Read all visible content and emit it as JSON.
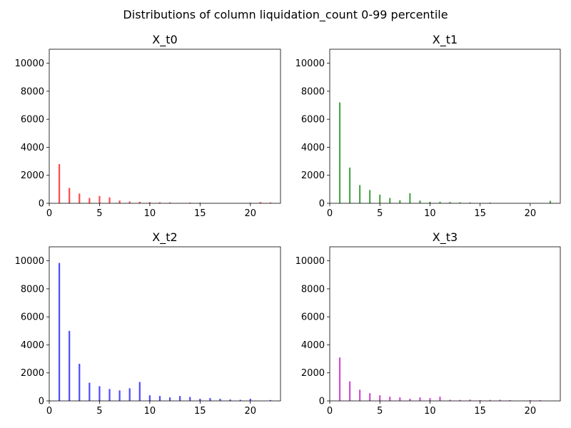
{
  "suptitle": "Distributions of column liquidation_count 0-99 percentile",
  "chart_data": [
    {
      "type": "bar",
      "title": "X_t0",
      "color": "#ff0000",
      "xlabel": "",
      "ylabel": "",
      "xlim": [
        0,
        23
      ],
      "ylim": [
        0,
        11000
      ],
      "xticks": [
        0,
        5,
        10,
        15,
        20
      ],
      "yticks": [
        0,
        2000,
        4000,
        6000,
        8000,
        10000
      ],
      "x": [
        1,
        2,
        3,
        4,
        5,
        6,
        7,
        8,
        9,
        10,
        11,
        12,
        14,
        15,
        20,
        21,
        22
      ],
      "values": [
        2800,
        1100,
        700,
        380,
        520,
        420,
        200,
        130,
        110,
        80,
        70,
        60,
        50,
        45,
        40,
        90,
        60
      ]
    },
    {
      "type": "bar",
      "title": "X_t1",
      "color": "#008000",
      "xlabel": "",
      "ylabel": "",
      "xlim": [
        0,
        23
      ],
      "ylim": [
        0,
        11000
      ],
      "xticks": [
        0,
        5,
        10,
        15,
        20
      ],
      "yticks": [
        0,
        2000,
        4000,
        6000,
        8000,
        10000
      ],
      "x": [
        1,
        2,
        3,
        4,
        5,
        6,
        7,
        8,
        9,
        10,
        11,
        12,
        13,
        14,
        16,
        22
      ],
      "values": [
        7200,
        2550,
        1300,
        950,
        620,
        380,
        220,
        720,
        200,
        110,
        110,
        90,
        70,
        60,
        50,
        180
      ]
    },
    {
      "type": "bar",
      "title": "X_t2",
      "color": "#0000ff",
      "xlabel": "",
      "ylabel": "",
      "xlim": [
        0,
        23
      ],
      "ylim": [
        0,
        11000
      ],
      "xticks": [
        0,
        5,
        10,
        15,
        20
      ],
      "yticks": [
        0,
        2000,
        4000,
        6000,
        8000,
        10000
      ],
      "x": [
        1,
        2,
        3,
        4,
        5,
        6,
        7,
        8,
        9,
        10,
        11,
        12,
        13,
        14,
        15,
        16,
        17,
        18,
        19,
        20,
        22
      ],
      "values": [
        9850,
        5000,
        2650,
        1300,
        1050,
        850,
        750,
        900,
        1350,
        400,
        350,
        250,
        350,
        280,
        150,
        200,
        150,
        100,
        80,
        150,
        60
      ]
    },
    {
      "type": "bar",
      "title": "X_t3",
      "color": "#bf00bf",
      "xlabel": "",
      "ylabel": "",
      "xlim": [
        0,
        23
      ],
      "ylim": [
        0,
        11000
      ],
      "xticks": [
        0,
        5,
        10,
        15,
        20
      ],
      "yticks": [
        0,
        2000,
        4000,
        6000,
        8000,
        10000
      ],
      "x": [
        1,
        2,
        3,
        4,
        5,
        6,
        7,
        8,
        9,
        10,
        11,
        12,
        13,
        14,
        15,
        16,
        17,
        18,
        20,
        21
      ],
      "values": [
        3100,
        1400,
        800,
        550,
        400,
        300,
        250,
        150,
        250,
        200,
        300,
        80,
        70,
        90,
        60,
        70,
        80,
        60,
        50,
        50
      ]
    }
  ]
}
